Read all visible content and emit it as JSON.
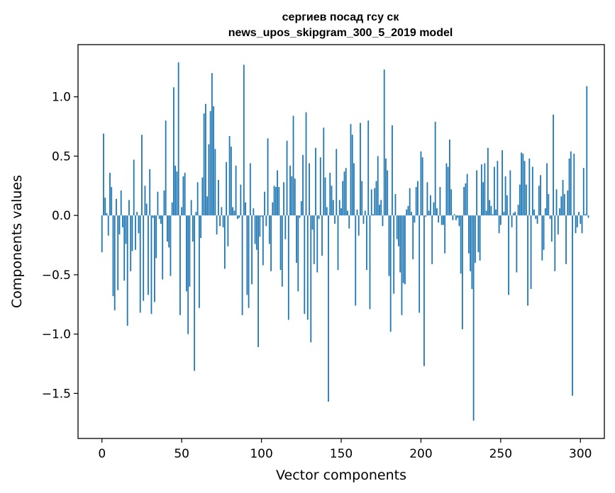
{
  "chart_data": {
    "type": "bar",
    "title_lines": [
      "сергиев посад гсу ск",
      "news_upos_skipgram_300_5_2019 model"
    ],
    "xlabel": "Vector components",
    "ylabel": "Components values",
    "xlim": [
      -15,
      315
    ],
    "ylim": [
      -1.88,
      1.44
    ],
    "xticks": [
      0,
      50,
      100,
      150,
      200,
      250,
      300
    ],
    "yticks": [
      -1.5,
      -1.0,
      -0.5,
      0.0,
      0.5,
      1.0
    ],
    "ytick_labels": [
      "−1.5",
      "−1.0",
      "−0.5",
      "0.0",
      "0.5",
      "1.0"
    ],
    "grid": false,
    "bar_color": "#1f77b4",
    "values": [
      -0.31,
      0.69,
      0.15,
      0.02,
      -0.17,
      0.36,
      0.24,
      -0.68,
      -0.8,
      0.14,
      -0.63,
      -0.16,
      0.21,
      -0.1,
      -0.55,
      -0.24,
      -0.93,
      0.13,
      -0.47,
      -0.3,
      0.47,
      -0.29,
      0.03,
      -0.15,
      -0.82,
      0.68,
      -0.72,
      0.25,
      0.1,
      -0.67,
      0.39,
      -0.83,
      -0.02,
      -0.73,
      -0.36,
      0.2,
      -0.03,
      -0.07,
      -0.54,
      0.21,
      0.8,
      -0.22,
      -0.27,
      -0.51,
      0.11,
      1.08,
      0.42,
      0.37,
      1.29,
      -0.84,
      0.07,
      0.33,
      0.36,
      -0.64,
      -1.0,
      -0.6,
      0.13,
      -0.22,
      -1.31,
      0.03,
      0.28,
      -0.78,
      -0.19,
      0.32,
      0.86,
      0.94,
      0.16,
      0.6,
      0.88,
      1.2,
      0.92,
      0.56,
      -0.16,
      0.3,
      -0.09,
      0.07,
      -0.1,
      -0.45,
      0.45,
      -0.26,
      0.67,
      0.58,
      0.07,
      0.04,
      0.42,
      -0.03,
      -0.02,
      0.26,
      -0.84,
      1.27,
      0.11,
      -0.67,
      -0.78,
      0.44,
      -0.58,
      0.06,
      -0.24,
      -0.29,
      -1.11,
      -0.18,
      -0.01,
      -0.42,
      0.2,
      -0.09,
      0.65,
      -0.24,
      -0.47,
      0.11,
      0.25,
      0.24,
      0.38,
      0.24,
      -0.46,
      -0.6,
      0.28,
      -0.2,
      0.63,
      -0.88,
      0.42,
      0.33,
      0.84,
      0.31,
      -0.4,
      -0.64,
      -0.02,
      0.12,
      0.51,
      -0.83,
      0.87,
      -0.88,
      0.44,
      -1.07,
      -0.12,
      -0.41,
      0.57,
      -0.48,
      -0.03,
      0.49,
      -0.34,
      0.74,
      0.32,
      0.07,
      -1.57,
      0.36,
      0.25,
      0.13,
      -0.07,
      0.56,
      -0.46,
      0.13,
      0.06,
      0.29,
      0.37,
      0.4,
      0.04,
      -0.11,
      0.77,
      0.68,
      0.44,
      -0.76,
      0.05,
      -0.17,
      0.78,
      0.29,
      -0.07,
      0.04,
      -0.46,
      0.8,
      -0.79,
      0.22,
      0.01,
      0.23,
      0.29,
      0.5,
      0.09,
      0.13,
      -0.09,
      1.23,
      0.48,
      0.38,
      -0.51,
      -0.98,
      0.76,
      -0.66,
      0.18,
      -0.2,
      -0.26,
      -0.48,
      -0.84,
      -0.57,
      -0.58,
      0.05,
      0.08,
      0.23,
      0.03,
      -0.37,
      -0.06,
      0.24,
      0.29,
      -0.82,
      0.54,
      0.49,
      -1.27,
      -0.01,
      0.28,
      0.04,
      0.17,
      -0.41,
      0.11,
      0.79,
      0.06,
      -0.06,
      0.24,
      -0.08,
      -0.08,
      -0.32,
      0.44,
      0.41,
      0.64,
      0.22,
      -0.04,
      0.01,
      -0.04,
      -0.02,
      -0.09,
      -0.49,
      -0.96,
      0.24,
      0.27,
      0.35,
      -0.32,
      -0.47,
      -0.62,
      -1.73,
      -0.4,
      0.38,
      -0.31,
      -0.38,
      0.43,
      0.28,
      0.44,
      0.04,
      0.57,
      0.13,
      0.08,
      0.01,
      0.41,
      0.05,
      0.46,
      -0.15,
      -0.08,
      0.55,
      0.03,
      0.33,
      0.17,
      -0.67,
      0.38,
      -0.1,
      0.02,
      0.03,
      -0.48,
      0.09,
      0.26,
      0.53,
      0.52,
      0.46,
      0.26,
      -0.76,
      0.48,
      -0.62,
      0.41,
      0.05,
      -0.03,
      -0.07,
      0.25,
      0.34,
      -0.38,
      -0.29,
      0.06,
      0.44,
      0.18,
      -0.03,
      -0.22,
      0.85,
      -0.47,
      0.22,
      -0.16,
      0.06,
      0.16,
      0.3,
      0.18,
      -0.41,
      0.21,
      0.48,
      0.54,
      -1.52,
      0.52,
      -0.15,
      -0.1,
      0.03,
      -0.07,
      -0.15,
      0.4,
      0.01,
      1.09,
      -0.02
    ]
  }
}
